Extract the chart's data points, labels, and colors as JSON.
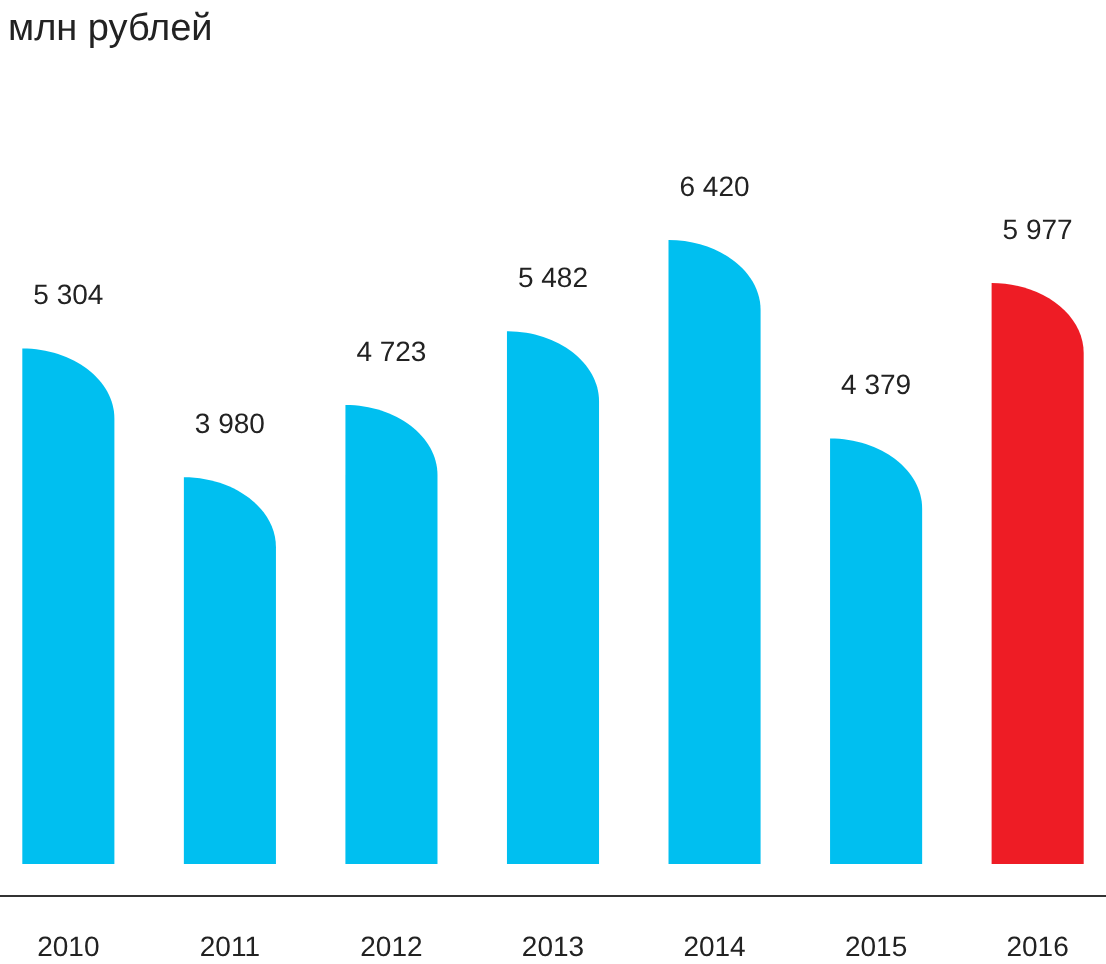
{
  "chart_data": {
    "type": "bar",
    "title": "млн рублей",
    "categories": [
      "2010",
      "2011",
      "2012",
      "2013",
      "2014",
      "2015",
      "2016"
    ],
    "values": [
      5304,
      3980,
      4723,
      5482,
      6420,
      4379,
      5977
    ],
    "value_labels": [
      "5 304",
      "3 980",
      "4 723",
      "5 482",
      "6 420",
      "4 379",
      "5 977"
    ],
    "colors": [
      "#00bff0",
      "#00bff0",
      "#00bff0",
      "#00bff0",
      "#00bff0",
      "#00bff0",
      "#ee1c25"
    ]
  }
}
